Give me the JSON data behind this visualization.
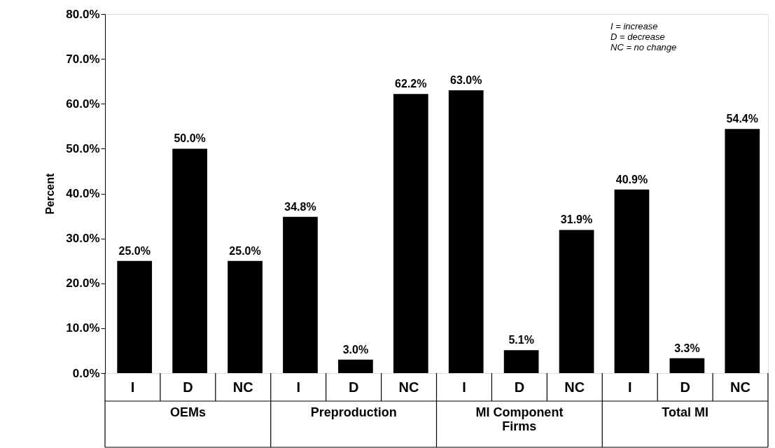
{
  "chart_data": {
    "type": "bar",
    "ylabel": "Percent",
    "categories": [
      "I",
      "D",
      "NC",
      "I",
      "D",
      "NC",
      "I",
      "D",
      "NC",
      "I",
      "D",
      "NC"
    ],
    "values": [
      25.0,
      50.0,
      25.0,
      34.8,
      3.0,
      62.2,
      63.0,
      5.1,
      31.9,
      40.9,
      3.3,
      54.4
    ],
    "value_labels": [
      "25.0%",
      "50.0%",
      "25.0%",
      "34.8%",
      "3.0%",
      "62.2%",
      "63.0%",
      "5.1%",
      "31.9%",
      "40.9%",
      "3.3%",
      "54.4%"
    ],
    "color": "#000000",
    "ylim": [
      0,
      80
    ],
    "yticks": [
      {
        "value": 0,
        "label": "0.0%"
      },
      {
        "value": 10,
        "label": "10.0%"
      },
      {
        "value": 20,
        "label": "20.0%"
      },
      {
        "value": 30,
        "label": "30.0%"
      },
      {
        "value": 40,
        "label": "40.0%"
      },
      {
        "value": 50,
        "label": "50.0%"
      },
      {
        "value": 60,
        "label": "60.0%"
      },
      {
        "value": 70,
        "label": "70.0%"
      },
      {
        "value": 80,
        "label": "80.0%"
      }
    ],
    "grid": false,
    "annotations": [
      "OEMs",
      "Preproduction",
      "MI Component\nFirms",
      "Total MI",
      "I    =    increase",
      "D    =    decrease",
      "NC =    no change"
    ]
  }
}
